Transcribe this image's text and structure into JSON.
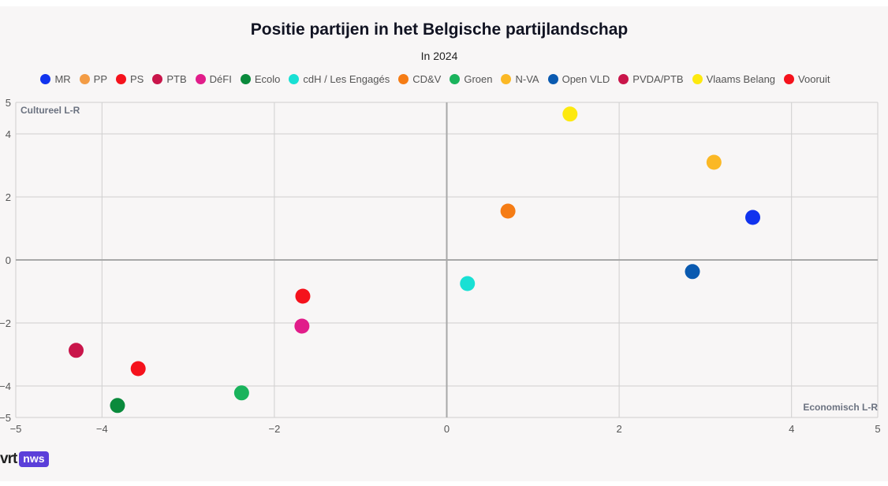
{
  "chart_data": {
    "type": "scatter",
    "title": "Positie partijen in het Belgische partijlandschap",
    "subtitle": "In 2024",
    "xlabel": "Economisch L-R",
    "ylabel": "Cultureel L-R",
    "xlim": [
      -5,
      5
    ],
    "ylim": [
      -5,
      5
    ],
    "xticks": [
      -5,
      -4,
      -2,
      0,
      2,
      4,
      5
    ],
    "yticks": [
      -5,
      -4,
      -2,
      0,
      2,
      4,
      5
    ],
    "xtick_labels": [
      "−5",
      "−4",
      "−2",
      "0",
      "2",
      "4",
      "5"
    ],
    "ytick_labels": [
      "−5",
      "−4",
      "−2",
      "0",
      "2",
      "4",
      "5"
    ],
    "grid": true,
    "legend": "top",
    "series": [
      {
        "name": "MR",
        "color": "#1133ee",
        "points": [
          [
            3.55,
            1.35
          ]
        ]
      },
      {
        "name": "PP",
        "color": "#f39c45",
        "points": []
      },
      {
        "name": "PS",
        "color": "#f5121c",
        "points": [
          [
            -3.58,
            -3.45
          ]
        ]
      },
      {
        "name": "PTB",
        "color": "#c9154a",
        "points": []
      },
      {
        "name": "DéFI",
        "color": "#e11d8a",
        "points": [
          [
            -1.68,
            -2.1
          ]
        ]
      },
      {
        "name": "Ecolo",
        "color": "#0a8a3c",
        "points": [
          [
            -3.82,
            -4.62
          ]
        ]
      },
      {
        "name": "cdH / Les Engagés",
        "color": "#19e0d4",
        "points": [
          [
            0.24,
            -0.75
          ]
        ]
      },
      {
        "name": "CD&V",
        "color": "#f57c15",
        "points": [
          [
            0.71,
            1.55
          ]
        ]
      },
      {
        "name": "Groen",
        "color": "#1ab35c",
        "points": [
          [
            -2.38,
            -4.22
          ]
        ]
      },
      {
        "name": "N-VA",
        "color": "#fbb825",
        "points": [
          [
            3.1,
            3.1
          ]
        ]
      },
      {
        "name": "Open VLD",
        "color": "#0a5ab0",
        "points": [
          [
            2.85,
            -0.37
          ]
        ]
      },
      {
        "name": "PVDA/PTB",
        "color": "#c9154a",
        "points": [
          [
            -4.3,
            -2.87
          ]
        ]
      },
      {
        "name": "Vlaams Belang",
        "color": "#fde90f",
        "points": [
          [
            1.43,
            4.63
          ]
        ]
      },
      {
        "name": "Vooruit",
        "color": "#f5121c",
        "points": [
          [
            -1.67,
            -1.15
          ]
        ]
      }
    ]
  },
  "branding": {
    "logo_left": "vrt",
    "logo_right": "nws"
  }
}
